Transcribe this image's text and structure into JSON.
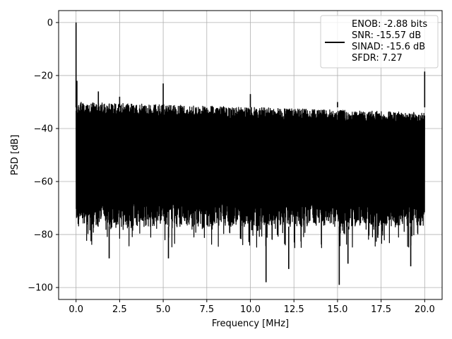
{
  "chart_data": {
    "type": "line",
    "title": "",
    "xlabel": "Frequency [MHz]",
    "ylabel": "PSD [dB]",
    "xlim": [
      -1.0,
      21.0
    ],
    "ylim": [
      -104.5,
      4.5
    ],
    "x_ticks": [
      0.0,
      2.5,
      5.0,
      7.5,
      10.0,
      12.5,
      15.0,
      17.5,
      20.0
    ],
    "x_tick_labels": [
      "0.0",
      "2.5",
      "5.0",
      "7.5",
      "10.0",
      "12.5",
      "15.0",
      "17.5",
      "20.0"
    ],
    "y_ticks": [
      0,
      -20,
      -40,
      -60,
      -80,
      -100
    ],
    "y_tick_labels": [
      "0",
      "−20",
      "−40",
      "−60",
      "−80",
      "−100"
    ],
    "grid": true,
    "legend_position": "top-right",
    "legend_lines": [
      "ENOB: -2.88 bits",
      "SNR: -15.57 dB",
      "SINAD: -15.6 dB",
      "SFDR: 7.27"
    ],
    "series": [
      {
        "color": "#000000",
        "noise_envelope": {
          "x_range": [
            0.0,
            20.0
          ],
          "upper_db_start": -30,
          "upper_db_end": -34,
          "lower_db_typical": -77,
          "lower_db_deepest": -99
        },
        "spurs": [
          {
            "x": 0.0,
            "y": 0.0
          },
          {
            "x": 0.05,
            "y": -22
          },
          {
            "x": 1.28,
            "y": -26
          },
          {
            "x": 2.5,
            "y": -28
          },
          {
            "x": 5.0,
            "y": -23
          },
          {
            "x": 10.0,
            "y": -27
          },
          {
            "x": 15.0,
            "y": -30
          },
          {
            "x": 20.0,
            "y": -18.5
          }
        ],
        "dips": [
          {
            "x": 1.9,
            "y": -89
          },
          {
            "x": 5.3,
            "y": -89
          },
          {
            "x": 10.9,
            "y": -98
          },
          {
            "x": 12.2,
            "y": -93
          },
          {
            "x": 15.1,
            "y": -99
          },
          {
            "x": 15.6,
            "y": -91
          },
          {
            "x": 19.2,
            "y": -92
          }
        ]
      }
    ]
  }
}
